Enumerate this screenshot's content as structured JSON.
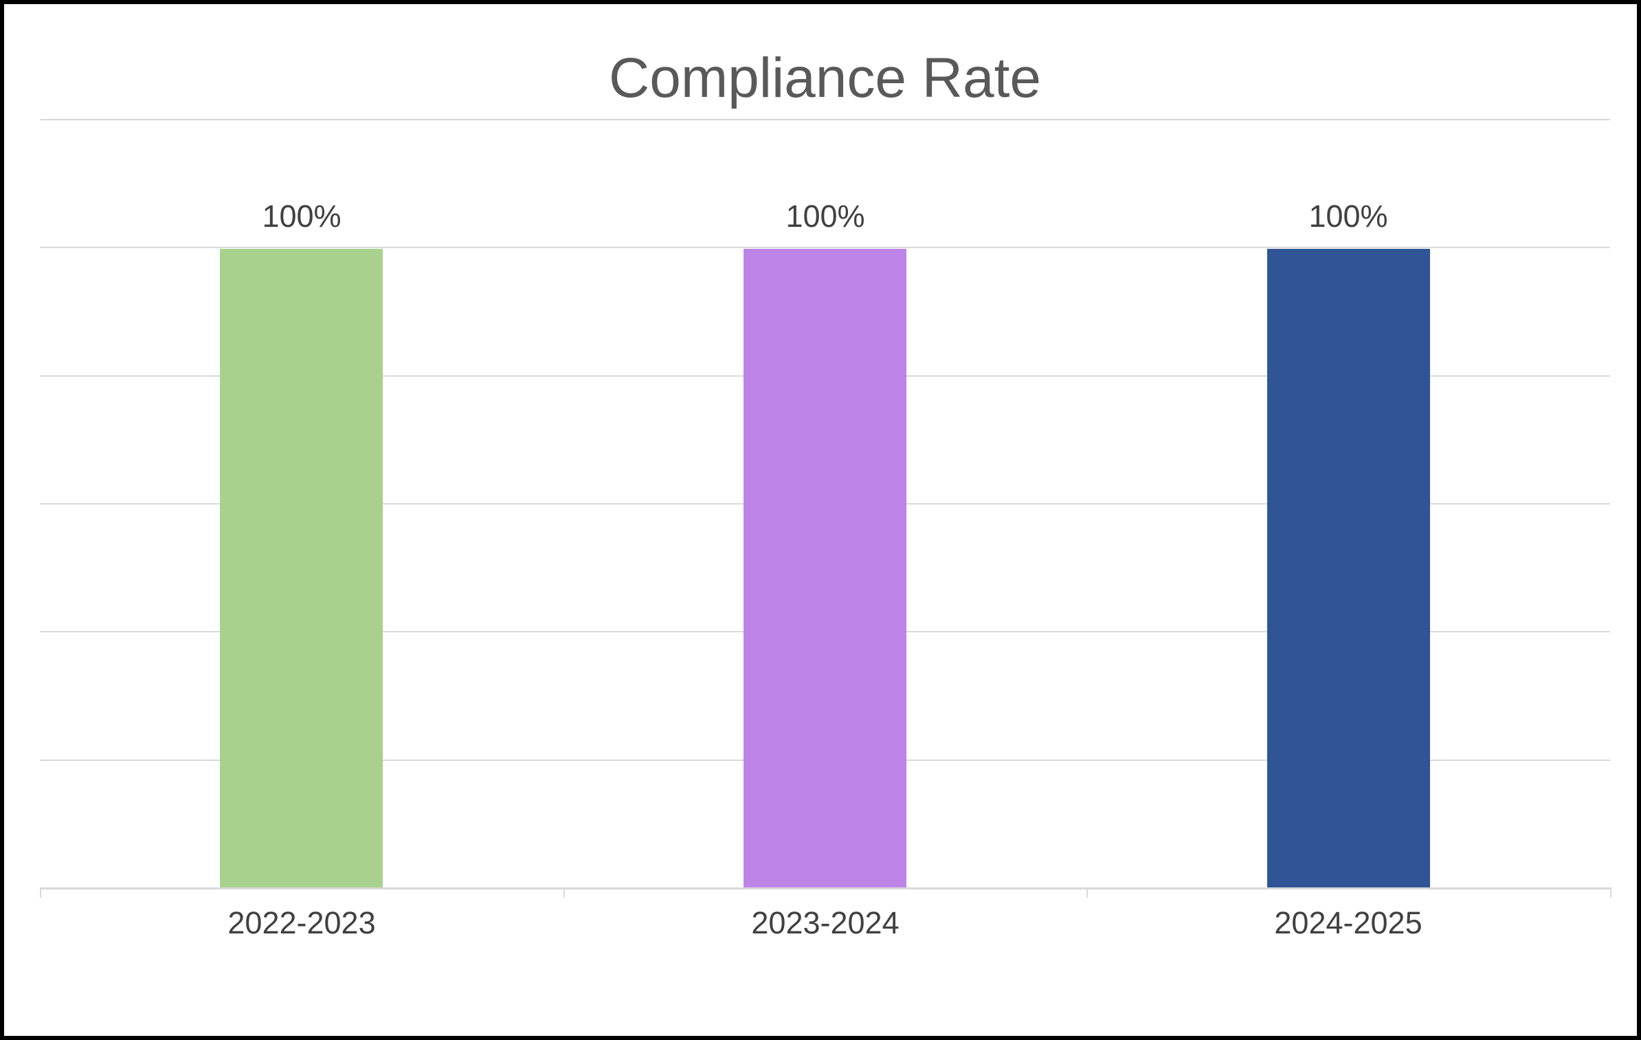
{
  "title": "Compliance Rate",
  "colors": {
    "title_text": "#595959",
    "label_text": "#404040",
    "gridline": "#d9d9d9",
    "border": "#000000",
    "background": "#ffffff"
  },
  "chart_data": {
    "type": "bar",
    "title": "Compliance Rate",
    "categories": [
      "2022-2023",
      "2023-2024",
      "2024-2025"
    ],
    "values": [
      100,
      100,
      100
    ],
    "data_labels": [
      "100%",
      "100%",
      "100%"
    ],
    "bar_colors": [
      "#A9D18E",
      "#BD84E8",
      "#2F5597"
    ],
    "xlabel": "",
    "ylabel": "",
    "ylim": [
      0,
      120
    ],
    "grid_step": 20,
    "grid": "horizontal-only",
    "y_axis_labels_visible": false,
    "legend": "none"
  }
}
